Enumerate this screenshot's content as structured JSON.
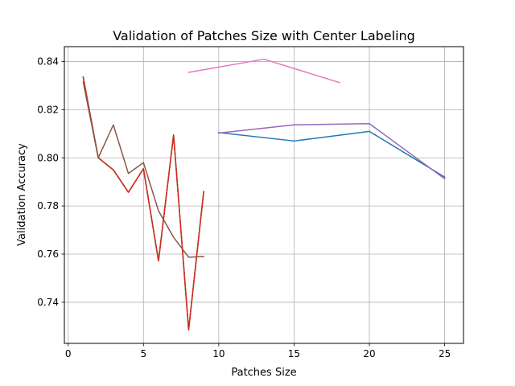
{
  "chart_data": {
    "type": "line",
    "title": "Validation of Patches Size with Center Labeling",
    "xlabel": "Patches Size",
    "ylabel": "Validation Accuracy",
    "xlim": [
      -0.25,
      26.25
    ],
    "ylim": [
      0.7229,
      0.8462
    ],
    "xticks": [
      0,
      5,
      10,
      15,
      20,
      25
    ],
    "yticks": [
      0.74,
      0.76,
      0.78,
      0.8,
      0.82,
      0.84
    ],
    "xtick_labels": [
      "0",
      "5",
      "10",
      "15",
      "20",
      "25"
    ],
    "ytick_labels": [
      "0.74",
      "0.76",
      "0.78",
      "0.80",
      "0.82",
      "0.84"
    ],
    "grid": true,
    "legend": "none",
    "series": [
      {
        "color": "#1f77b4",
        "x": [
          10,
          15,
          20,
          25
        ],
        "y": [
          0.8105,
          0.807,
          0.811,
          0.792
        ]
      },
      {
        "color": "#ff7f0e",
        "x": [
          1,
          2,
          3,
          4,
          5,
          6,
          7,
          8,
          9
        ],
        "y": [
          0.8335,
          0.8,
          0.795,
          0.7857,
          0.7955,
          0.7572,
          0.8095,
          0.7285,
          0.786
        ]
      },
      {
        "color": "#2ca02c",
        "x": [
          1,
          2,
          3,
          4,
          5,
          6,
          7,
          8,
          9
        ],
        "y": [
          0.8335,
          0.8,
          0.795,
          0.7857,
          0.7955,
          0.7572,
          0.8095,
          0.7285,
          0.786
        ]
      },
      {
        "color": "#d62728",
        "x": [
          1,
          2,
          3,
          4,
          5,
          6,
          7,
          8,
          9
        ],
        "y": [
          0.8335,
          0.8,
          0.795,
          0.7857,
          0.7955,
          0.7572,
          0.8095,
          0.7285,
          0.786
        ]
      },
      {
        "color": "#9467bd",
        "x": [
          10,
          15,
          20,
          25
        ],
        "y": [
          0.8103,
          0.8137,
          0.8142,
          0.7913
        ]
      },
      {
        "color": "#8c564b",
        "x": [
          1,
          2,
          3,
          4,
          5,
          6,
          7,
          8,
          9
        ],
        "y": [
          0.8315,
          0.8,
          0.8137,
          0.7935,
          0.798,
          0.778,
          0.767,
          0.7587,
          0.759
        ]
      },
      {
        "color": "#e377c2",
        "x": [
          8,
          13,
          18
        ],
        "y": [
          0.8355,
          0.841,
          0.8313
        ]
      }
    ]
  }
}
